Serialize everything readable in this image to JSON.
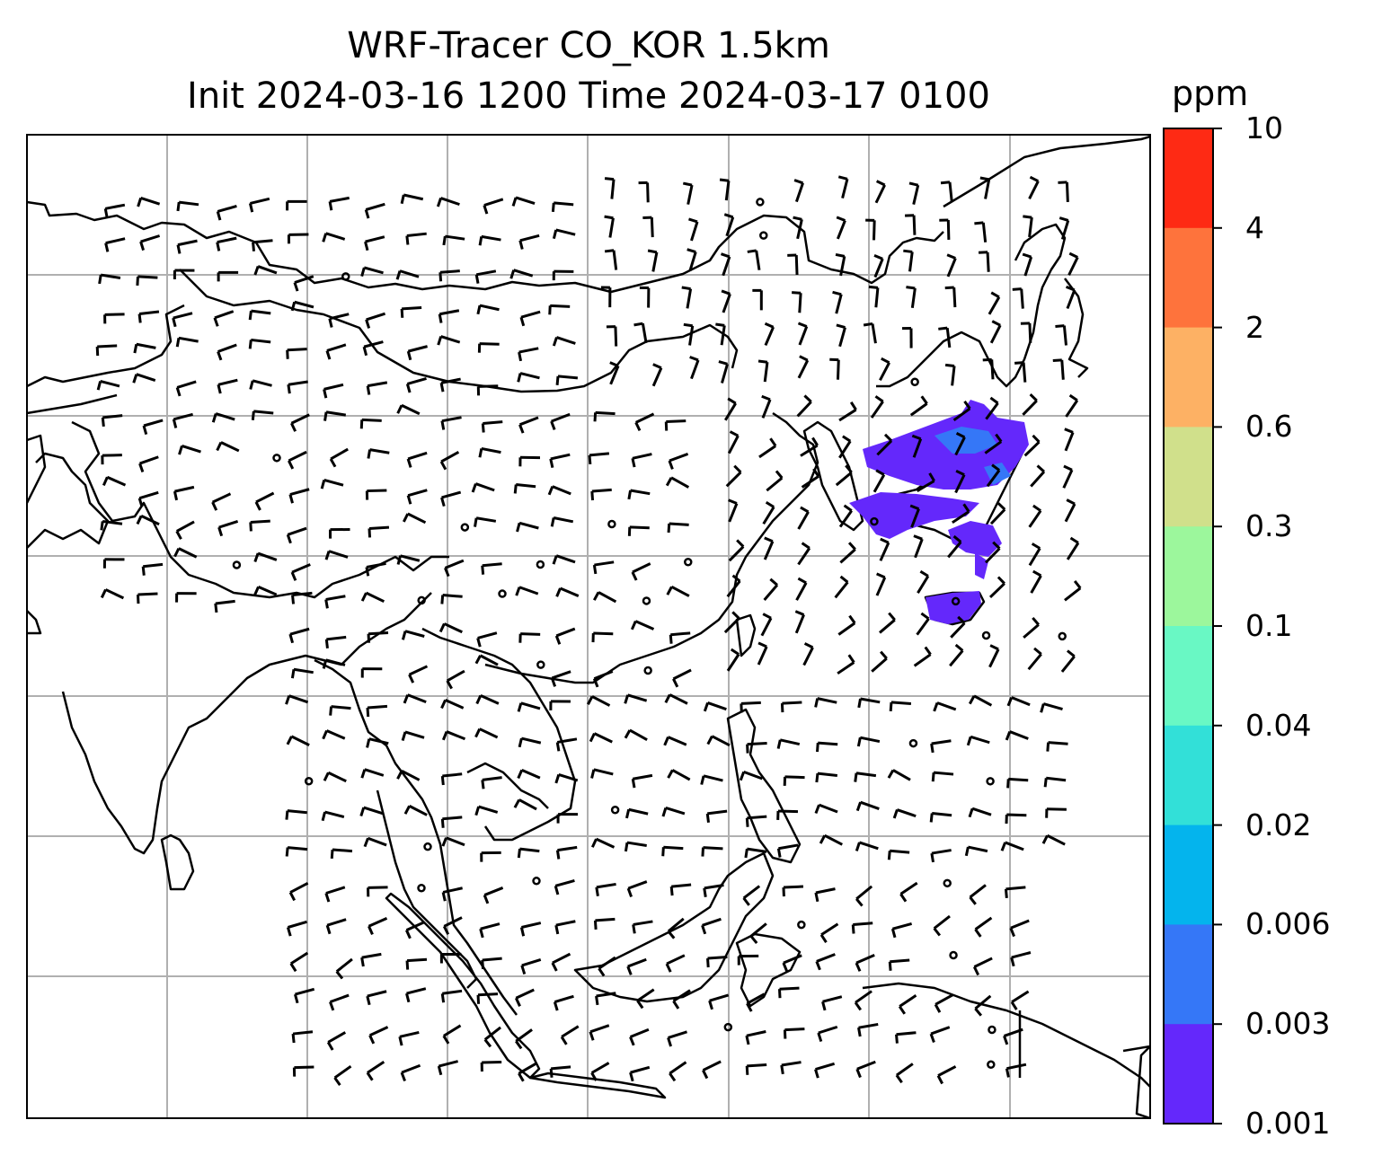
{
  "title": {
    "line1": "WRF-Tracer CO_KOR 1.5km",
    "line2": "Init 2024-03-16 1200 Time 2024-03-17 0100"
  },
  "colorbar": {
    "unit": "ppm",
    "levels": [
      "10",
      "4",
      "2",
      "0.6",
      "0.3",
      "0.1",
      "0.04",
      "0.02",
      "0.006",
      "0.003",
      "0.001"
    ],
    "colors": [
      "#fe2a14",
      "#fe733c",
      "#fdb164",
      "#d0e08b",
      "#9cf79c",
      "#69f8c4",
      "#32e0d8",
      "#04b4ed",
      "#3577f7",
      "#6428fb"
    ]
  },
  "map": {
    "region": "East Asia / Southeast Asia",
    "gridlines": true,
    "tracer_plume": {
      "location": "Korean Peninsula / Japan region",
      "predominant_range_ppm": "0.001-0.006",
      "color": "#6428fb",
      "core_color": "#3577f7"
    },
    "wind_barbs": true
  }
}
